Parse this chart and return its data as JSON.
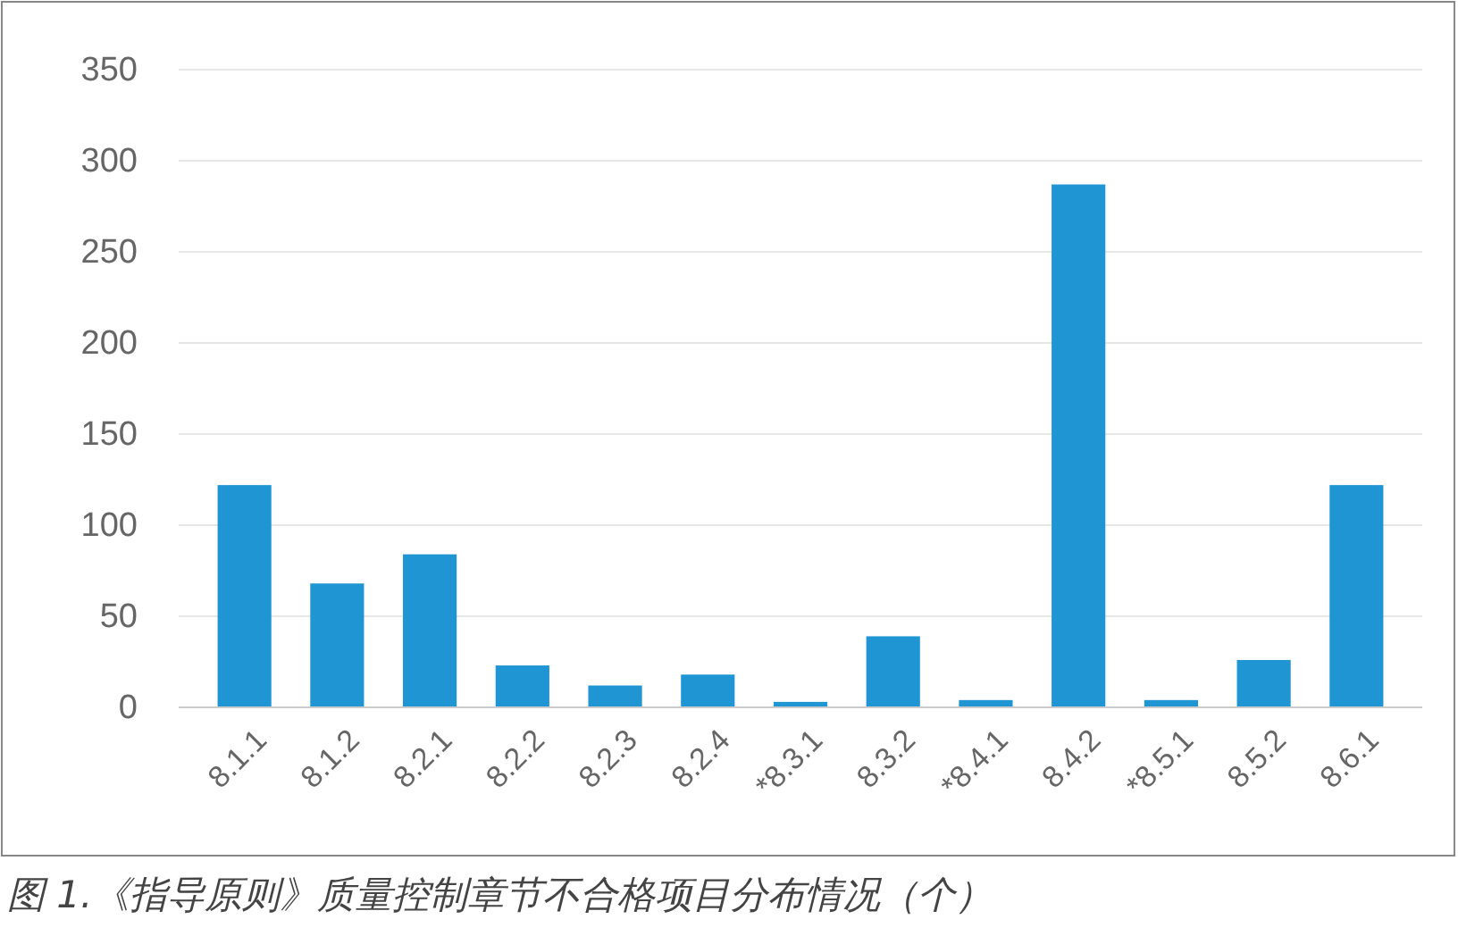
{
  "chart_data": {
    "type": "bar",
    "title": "图 1.《指导原则》质量控制章节不合格项目分布情况（个）",
    "categories": [
      "8.1.1",
      "8.1.2",
      "8.2.1",
      "8.2.2",
      "8.2.3",
      "8.2.4",
      "*8.3.1",
      "8.3.2",
      "*8.4.1",
      "8.4.2",
      "*8.5.1",
      "8.5.2",
      "8.6.1"
    ],
    "values": [
      122,
      68,
      84,
      23,
      12,
      18,
      3,
      39,
      4,
      287,
      4,
      26,
      122
    ],
    "color": "#1f95d3",
    "ylim": [
      0,
      350
    ],
    "yticks": [
      0,
      50,
      100,
      150,
      200,
      250,
      300,
      350
    ],
    "grid": "y"
  }
}
